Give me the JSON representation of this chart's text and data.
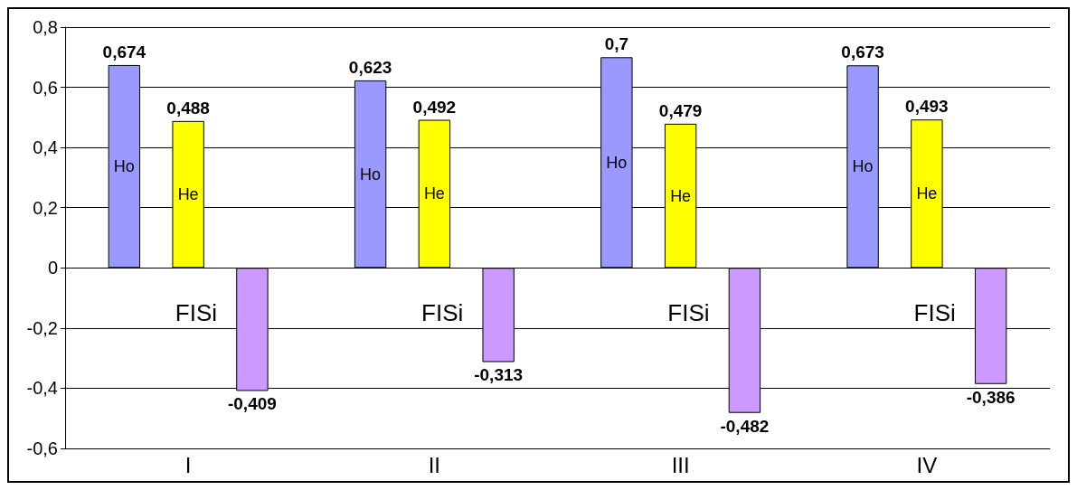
{
  "chart_data": {
    "type": "bar",
    "categories": [
      "I",
      "II",
      "III",
      "IV"
    ],
    "series": [
      {
        "name": "Ho",
        "color": "#9999ff",
        "values": [
          0.674,
          0.623,
          0.7,
          0.673
        ],
        "value_labels": [
          "0,674",
          "0,623",
          "0,7",
          "0,673"
        ]
      },
      {
        "name": "He",
        "color": "#ffff00",
        "values": [
          0.488,
          0.492,
          0.479,
          0.493
        ],
        "value_labels": [
          "0,488",
          "0,492",
          "0,479",
          "0,493"
        ]
      },
      {
        "name": "FISi",
        "color": "#cc99ff",
        "values": [
          -0.409,
          -0.313,
          -0.482,
          -0.386
        ],
        "value_labels": [
          "-0,409",
          "-0,313",
          "-0,482",
          "-0,386"
        ]
      }
    ],
    "ylim": [
      -0.6,
      0.8
    ],
    "yticks": [
      {
        "value": -0.6,
        "label": "-0,6"
      },
      {
        "value": -0.4,
        "label": "-0,4"
      },
      {
        "value": -0.2,
        "label": "-0,2"
      },
      {
        "value": 0,
        "label": "0"
      },
      {
        "value": 0.2,
        "label": "0,2"
      },
      {
        "value": 0.4,
        "label": "0,4"
      },
      {
        "value": 0.6,
        "label": "0,6"
      },
      {
        "value": 0.8,
        "label": "0,8"
      }
    ],
    "grid": "y",
    "legend": false
  }
}
